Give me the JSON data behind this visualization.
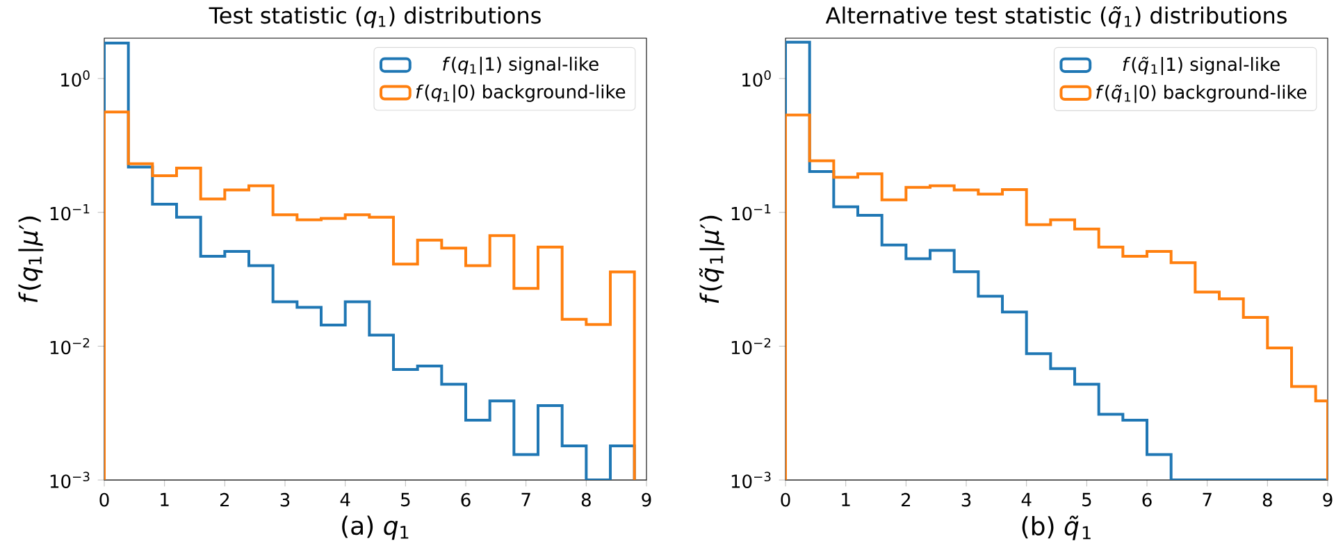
{
  "chart_data": [
    {
      "type": "histogram",
      "title": "Test statistic (*q*$_{1}$) distributions",
      "xlabel": "(a) *q*$_{1}$",
      "ylabel": "*f*(*q*$_{1}$|*μ*′)",
      "bins": [
        0,
        0.4,
        0.8,
        1.2,
        1.6,
        2.0,
        2.4,
        2.8,
        3.2,
        3.6,
        4.0,
        4.4,
        4.8,
        5.2,
        5.6,
        6.0,
        6.4,
        6.8,
        7.2,
        7.6,
        8.0,
        8.4,
        8.8
      ],
      "series": [
        {
          "name": "*f*(*q*$_{1}$|1) signal-like",
          "color": "#1f77b4",
          "values": [
            1.84,
            0.218,
            0.115,
            0.092,
            0.047,
            0.051,
            0.04,
            0.0215,
            0.0195,
            0.0144,
            0.0215,
            0.0121,
            0.0067,
            0.0071,
            0.0052,
            0.0028,
            0.0039,
            0.00155,
            0.0036,
            0.0018,
            null,
            0.0018
          ]
        },
        {
          "name": "*f*(*q*$_{1}$|0) background-like",
          "color": "#ff7f0e",
          "values": [
            0.562,
            0.231,
            0.188,
            0.214,
            0.126,
            0.147,
            0.158,
            0.096,
            0.088,
            0.09,
            0.096,
            0.092,
            0.041,
            0.062,
            0.054,
            0.04,
            0.067,
            0.027,
            0.055,
            0.0159,
            0.0145,
            0.0359
          ]
        }
      ],
      "xlim": [
        0,
        9
      ],
      "ylim": [
        0.001,
        2
      ],
      "xticks": [
        0,
        1,
        2,
        3,
        4,
        5,
        6,
        7,
        8,
        9
      ],
      "yticks": [
        {
          "value": 0.001,
          "label": "10$^{−3}$"
        },
        {
          "value": 0.01,
          "label": "10$^{−2}$"
        },
        {
          "value": 0.1,
          "label": "10$^{−1}$"
        },
        {
          "value": 1,
          "label": "10$^{0}$"
        }
      ],
      "log": true,
      "legend": "top right"
    },
    {
      "type": "histogram",
      "title": "Alternative test statistic (*q̃*$_{1}$) distributions",
      "xlabel": "(b) *q̃*$_{1}$",
      "ylabel": "*f*(*q̃*$_{1}$|*μ*′)",
      "bins": [
        0,
        0.4,
        0.8,
        1.2,
        1.6,
        2.0,
        2.4,
        2.8,
        3.2,
        3.6,
        4.0,
        4.4,
        4.8,
        5.2,
        5.6,
        6.0,
        6.4,
        6.8,
        7.2,
        7.6,
        8.0,
        8.4,
        8.8,
        9.0
      ],
      "series": [
        {
          "name": "*f*(*q̃*$_{1}$|1) signal-like",
          "color": "#1f77b4",
          "values": [
            1.87,
            0.202,
            0.11,
            0.095,
            0.057,
            0.045,
            0.052,
            0.036,
            0.0236,
            0.018,
            0.0088,
            0.0068,
            0.0052,
            0.0031,
            0.0028,
            0.00155,
            0.001,
            null,
            null,
            null,
            null,
            null,
            null
          ]
        },
        {
          "name": "*f*(*q̃*$_{1}$|0) background-like",
          "color": "#ff7f0e",
          "values": [
            0.535,
            0.243,
            0.183,
            0.194,
            0.124,
            0.154,
            0.158,
            0.147,
            0.137,
            0.148,
            0.081,
            0.088,
            0.075,
            0.055,
            0.047,
            0.051,
            0.042,
            0.0254,
            0.0226,
            0.0164,
            0.0097,
            0.005,
            0.0039
          ]
        }
      ],
      "xlim": [
        0,
        9
      ],
      "ylim": [
        0.001,
        2
      ],
      "xticks": [
        0,
        1,
        2,
        3,
        4,
        5,
        6,
        7,
        8,
        9
      ],
      "yticks": [
        {
          "value": 0.001,
          "label": "10$^{−3}$"
        },
        {
          "value": 0.01,
          "label": "10$^{−2}$"
        },
        {
          "value": 0.1,
          "label": "10$^{−1}$"
        },
        {
          "value": 1,
          "label": "10$^{0}$"
        }
      ],
      "log": true,
      "legend": "top right"
    }
  ]
}
